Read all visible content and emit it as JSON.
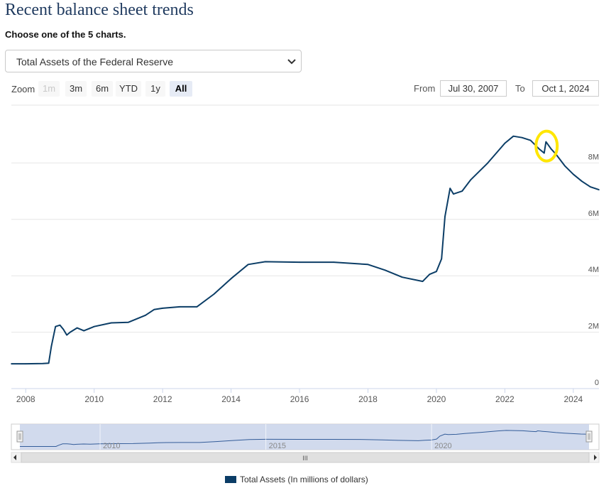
{
  "page": {
    "title": "Recent balance sheet trends",
    "subtitle": "Choose one of the 5 charts."
  },
  "selector": {
    "value": "Total Assets of the Federal Reserve"
  },
  "zoom": {
    "label": "Zoom",
    "buttons": [
      "1m",
      "3m",
      "6m",
      "YTD",
      "1y",
      "All"
    ],
    "disabled": "1m",
    "active": "All"
  },
  "range": {
    "from_label": "From",
    "from_value": "Jul 30, 2007",
    "to_label": "To",
    "to_value": "Oct 1, 2024"
  },
  "navigator": {
    "labels": [
      "2010",
      "2015",
      "2020"
    ],
    "scroll_grip": "III"
  },
  "colors": {
    "series": "#0b3d66",
    "navigator_fill": "#c9d3ea",
    "annotation": "#ffe600",
    "gridline": "#e6e6e6"
  },
  "chart_data": {
    "type": "line",
    "title": "",
    "xlabel": "",
    "ylabel": "",
    "xlim": [
      2007.58,
      2024.75
    ],
    "ylim": [
      0,
      10000000
    ],
    "x_ticks": [
      2008,
      2010,
      2012,
      2014,
      2016,
      2018,
      2020,
      2022,
      2024
    ],
    "x_tick_labels": [
      "2008",
      "2010",
      "2012",
      "2014",
      "2016",
      "2018",
      "2020",
      "2022",
      "2024"
    ],
    "y_ticks": [
      0,
      2000000,
      4000000,
      6000000,
      8000000
    ],
    "y_tick_labels": [
      "0",
      "2M",
      "4M",
      "6M",
      "8M"
    ],
    "grid": true,
    "legend_position": "bottom",
    "annotation": "yellow hand-drawn circle around the early-2023 spike",
    "series": [
      {
        "name": "Total Assets (In millions of dollars)",
        "points": [
          [
            2007.58,
            880000
          ],
          [
            2008.0,
            880000
          ],
          [
            2008.5,
            890000
          ],
          [
            2008.67,
            900000
          ],
          [
            2008.75,
            1500000
          ],
          [
            2008.87,
            2200000
          ],
          [
            2009.0,
            2250000
          ],
          [
            2009.1,
            2100000
          ],
          [
            2009.2,
            1900000
          ],
          [
            2009.3,
            2000000
          ],
          [
            2009.5,
            2150000
          ],
          [
            2009.7,
            2050000
          ],
          [
            2010.0,
            2200000
          ],
          [
            2010.5,
            2330000
          ],
          [
            2011.0,
            2350000
          ],
          [
            2011.5,
            2600000
          ],
          [
            2011.75,
            2800000
          ],
          [
            2012.0,
            2850000
          ],
          [
            2012.5,
            2900000
          ],
          [
            2013.0,
            2900000
          ],
          [
            2013.5,
            3350000
          ],
          [
            2014.0,
            3900000
          ],
          [
            2014.5,
            4400000
          ],
          [
            2015.0,
            4500000
          ],
          [
            2016.0,
            4480000
          ],
          [
            2017.0,
            4480000
          ],
          [
            2018.0,
            4400000
          ],
          [
            2018.5,
            4200000
          ],
          [
            2019.0,
            3950000
          ],
          [
            2019.6,
            3800000
          ],
          [
            2019.8,
            4050000
          ],
          [
            2020.0,
            4150000
          ],
          [
            2020.15,
            4600000
          ],
          [
            2020.25,
            6100000
          ],
          [
            2020.4,
            7100000
          ],
          [
            2020.5,
            6900000
          ],
          [
            2020.75,
            7000000
          ],
          [
            2021.0,
            7400000
          ],
          [
            2021.5,
            8000000
          ],
          [
            2022.0,
            8700000
          ],
          [
            2022.25,
            8950000
          ],
          [
            2022.5,
            8900000
          ],
          [
            2022.75,
            8800000
          ],
          [
            2023.0,
            8500000
          ],
          [
            2023.15,
            8350000
          ],
          [
            2023.2,
            8750000
          ],
          [
            2023.35,
            8500000
          ],
          [
            2023.5,
            8300000
          ],
          [
            2023.75,
            7900000
          ],
          [
            2024.0,
            7600000
          ],
          [
            2024.25,
            7350000
          ],
          [
            2024.5,
            7150000
          ],
          [
            2024.75,
            7050000
          ]
        ]
      }
    ]
  }
}
